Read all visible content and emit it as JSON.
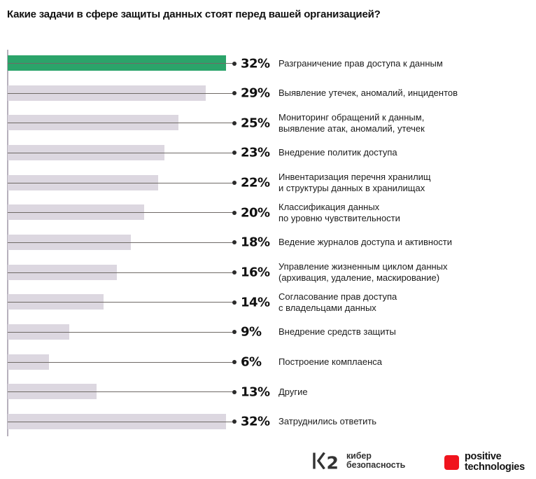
{
  "title": "Какие задачи в сфере защиты данных стоят перед вашей организацией?",
  "chart_data": {
    "type": "bar",
    "orientation": "horizontal",
    "unit": "%",
    "xlim": [
      0,
      32
    ],
    "grid": false,
    "legend": false,
    "highlight_index": 0,
    "bars": [
      {
        "value": 32,
        "display": "32%",
        "label": "Разграничение прав доступа к данным"
      },
      {
        "value": 29,
        "display": "29%",
        "label": "Выявление утечек, аномалий, инцидентов"
      },
      {
        "value": 25,
        "display": "25%",
        "label": "Мониторинг обращений к данным,\nвыявление атак, аномалий, утечек"
      },
      {
        "value": 23,
        "display": "23%",
        "label": "Внедрение политик доступа"
      },
      {
        "value": 22,
        "display": "22%",
        "label": "Инвентаризация перечня хранилищ\nи структуры данных в хранилищах"
      },
      {
        "value": 20,
        "display": "20%",
        "label": "Классификация данных\nпо уровню чувствительности"
      },
      {
        "value": 18,
        "display": "18%",
        "label": "Ведение журналов доступа и активности"
      },
      {
        "value": 16,
        "display": "16%",
        "label": "Управление жизненным циклом данных\n(архивация, удаление, маскирование)"
      },
      {
        "value": 14,
        "display": "14%",
        "label": "Согласование прав доступа\nс владельцами данных"
      },
      {
        "value": 9,
        "display": "9%",
        "label": "Внедрение средств защиты"
      },
      {
        "value": 6,
        "display": "6%",
        "label": "Построение комплаенса"
      },
      {
        "value": 13,
        "display": "13%",
        "label": "Другие"
      },
      {
        "value": 32,
        "display": "32%",
        "label": "Затруднились ответить"
      }
    ]
  },
  "colors": {
    "highlight-bar": "#2ba46a",
    "bar": "#dcd7e0",
    "connector": "#6f6a66",
    "dot": "#2b2b2b",
    "axis": "#b6b0bc",
    "text": "#141414",
    "pt-red": "#f0141e",
    "logo-ink": "#333333"
  },
  "footer": {
    "k2_logo": {
      "mark_digit": "2",
      "text": "кибер\nбезопасность"
    },
    "pt_logo": {
      "text": "positive\ntechnologies"
    }
  }
}
